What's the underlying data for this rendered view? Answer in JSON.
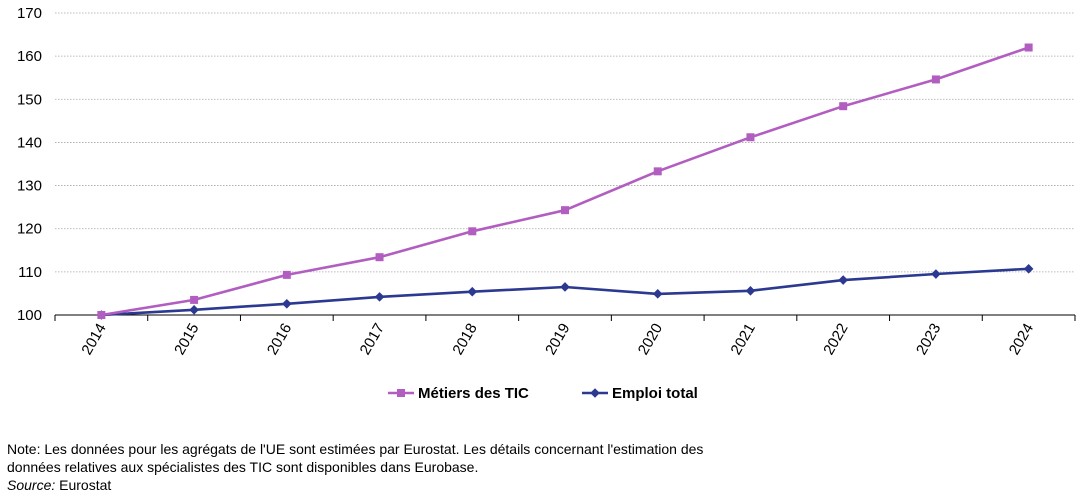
{
  "chart_data": {
    "type": "line",
    "categories": [
      "2014",
      "2015",
      "2016",
      "2017",
      "2018",
      "2019",
      "2020",
      "2021",
      "2022",
      "2023",
      "2024"
    ],
    "series": [
      {
        "name": "Métiers des TIC",
        "color": "#b25ec0",
        "marker": "square",
        "values": [
          100,
          103.5,
          109.3,
          113.4,
          119.4,
          124.3,
          133.3,
          141.2,
          148.4,
          154.6,
          162.0
        ]
      },
      {
        "name": "Emploi total",
        "color": "#2b3990",
        "marker": "diamond",
        "values": [
          100,
          101.2,
          102.6,
          104.2,
          105.4,
          106.5,
          104.9,
          105.6,
          108.1,
          109.5,
          110.7
        ]
      }
    ],
    "ylim": [
      100,
      170
    ],
    "yticks": [
      100,
      110,
      120,
      130,
      140,
      150,
      160,
      170
    ],
    "grid": true,
    "legend_position": "bottom"
  },
  "notes": {
    "note_line1": "Note: Les données pour les agrégats de l'UE sont estimées par Eurostat. Les détails concernant l'estimation des",
    "note_line2": "données relatives aux spécialistes des TIC sont disponibles dans Eurobase.",
    "source_label": "Source:",
    "source_value": " Eurostat"
  }
}
